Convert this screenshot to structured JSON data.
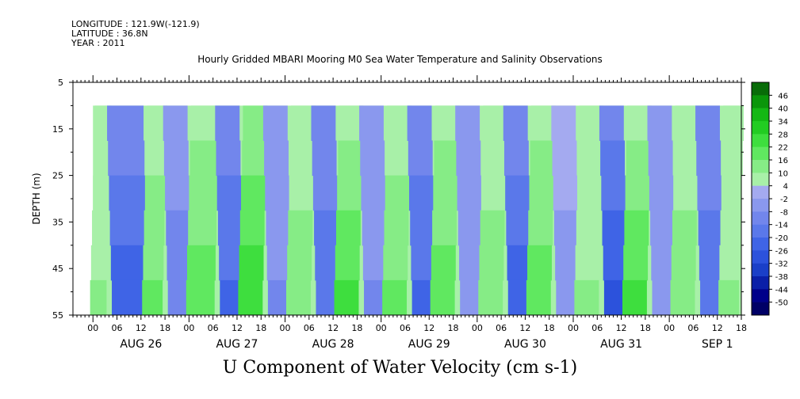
{
  "header": {
    "longitude": "LONGITUDE : 121.9W(-121.9)",
    "latitude": "LATITUDE : 36.8N",
    "year": "YEAR : 2011"
  },
  "title": "Hourly Gridded MBARI Mooring M0 Sea Water Temperature and Salinity Observations",
  "bottom_title": "U Component of Water Velocity (cm s-1)",
  "chart_data": {
    "type": "heatmap",
    "title": "Hourly Gridded MBARI Mooring M0 Sea Water Temperature and Salinity Observations",
    "subtitle": "U Component of Water Velocity (cm s-1)",
    "xlabel": "",
    "ylabel": "DEPTH (m)",
    "y_reversed": true,
    "ylim": [
      5,
      55
    ],
    "yticks": [
      5,
      15,
      25,
      35,
      45,
      55
    ],
    "xlim_hours": [
      -5,
      162
    ],
    "hour_ticks": [
      "00",
      "06",
      "12",
      "18",
      "00",
      "06",
      "12",
      "18",
      "00",
      "06",
      "12",
      "18",
      "00",
      "06",
      "12",
      "18",
      "00",
      "06",
      "12",
      "18",
      "00",
      "06",
      "12",
      "18",
      "00",
      "06",
      "12",
      "18"
    ],
    "day_labels": [
      "AUG 26",
      "AUG 27",
      "AUG 28",
      "AUG 29",
      "AUG 30",
      "AUG 31",
      "SEP  1"
    ],
    "data_depth_range": [
      10,
      55
    ],
    "data_start_hour": 0,
    "data_end_hour": 162,
    "colorbar": {
      "levels": [
        -50,
        -44,
        -38,
        -32,
        -26,
        -20,
        -14,
        -8,
        -2,
        4,
        10,
        16,
        22,
        28,
        34,
        40,
        46
      ],
      "colors": [
        "#000066",
        "#00008a",
        "#0a1fa8",
        "#1a3fc8",
        "#2c52dc",
        "#3f64e6",
        "#5a78ea",
        "#7286ec",
        "#8a98ee",
        "#a4aaf0",
        "#a8f0a8",
        "#86ec86",
        "#60e860",
        "#3ede3e",
        "#22cc22",
        "#14b814",
        "#0a960a",
        "#086c08"
      ],
      "label": "cm s-1"
    },
    "vertical_bands": [
      {
        "start_hour": 0,
        "end_hour": 4,
        "value": 8
      },
      {
        "start_hour": 4,
        "end_hour": 13,
        "value": -18
      },
      {
        "start_hour": 13,
        "end_hour": 18,
        "value": 12
      },
      {
        "start_hour": 18,
        "end_hour": 24,
        "value": -8
      },
      {
        "start_hour": 24,
        "end_hour": 31,
        "value": 14
      },
      {
        "start_hour": 31,
        "end_hour": 37,
        "value": -16
      },
      {
        "start_hour": 37,
        "end_hour": 43,
        "value": 18
      },
      {
        "start_hour": 43,
        "end_hour": 49,
        "value": -6
      },
      {
        "start_hour": 49,
        "end_hour": 55,
        "value": 10
      },
      {
        "start_hour": 55,
        "end_hour": 61,
        "value": -14
      },
      {
        "start_hour": 61,
        "end_hour": 67,
        "value": 16
      },
      {
        "start_hour": 67,
        "end_hour": 73,
        "value": -6
      },
      {
        "start_hour": 73,
        "end_hour": 79,
        "value": 12
      },
      {
        "start_hour": 79,
        "end_hour": 85,
        "value": -16
      },
      {
        "start_hour": 85,
        "end_hour": 91,
        "value": 14
      },
      {
        "start_hour": 91,
        "end_hour": 97,
        "value": -4
      },
      {
        "start_hour": 97,
        "end_hour": 103,
        "value": 10
      },
      {
        "start_hour": 103,
        "end_hour": 109,
        "value": -18
      },
      {
        "start_hour": 109,
        "end_hour": 115,
        "value": 14
      },
      {
        "start_hour": 115,
        "end_hour": 121,
        "value": -2
      },
      {
        "start_hour": 121,
        "end_hour": 127,
        "value": 8
      },
      {
        "start_hour": 127,
        "end_hour": 133,
        "value": -20
      },
      {
        "start_hour": 133,
        "end_hour": 139,
        "value": 16
      },
      {
        "start_hour": 139,
        "end_hour": 145,
        "value": -4
      },
      {
        "start_hour": 145,
        "end_hour": 151,
        "value": 10
      },
      {
        "start_hour": 151,
        "end_hour": 157,
        "value": -14
      },
      {
        "start_hour": 157,
        "end_hour": 162,
        "value": 8
      }
    ]
  }
}
